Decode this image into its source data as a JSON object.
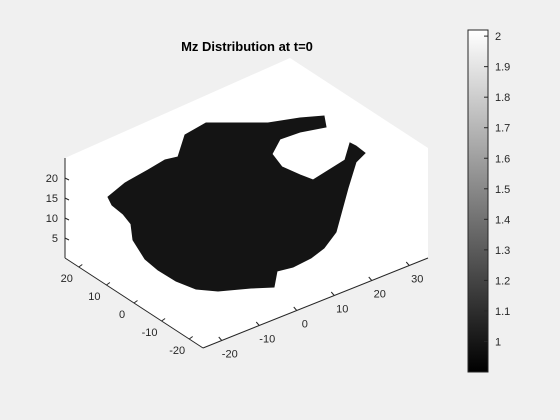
{
  "chart_data": {
    "type": "surface3d",
    "title": "Mz Distribution at t=0",
    "xlabel": "",
    "ylabel": "",
    "zlabel": "",
    "x_ticks": [
      "-20",
      "-10",
      "0",
      "10",
      "20",
      "30"
    ],
    "y_ticks": [
      "-20",
      "-10",
      "0",
      "10",
      "20"
    ],
    "z_ticks": [
      "5",
      "10",
      "15",
      "20"
    ],
    "xlim": [
      -25,
      35
    ],
    "ylim": [
      -25,
      25
    ],
    "zlim": [
      0,
      25
    ],
    "colormap": "gray",
    "colorbar": {
      "ticks": [
        "1",
        "1.1",
        "1.2",
        "1.3",
        "1.4",
        "1.5",
        "1.6",
        "1.7",
        "1.8",
        "1.9",
        "2"
      ],
      "range": [
        0.9,
        2.02
      ]
    },
    "surface": {
      "description_value": 1,
      "color": "#141414",
      "height": 0
    }
  }
}
